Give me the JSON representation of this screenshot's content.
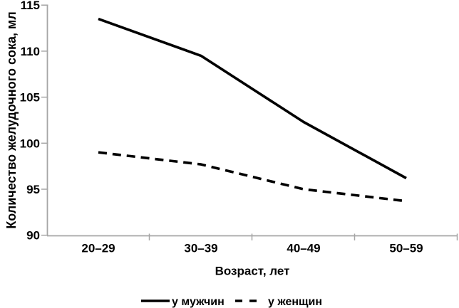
{
  "chart_data": {
    "type": "line",
    "xlabel": "Возраст, лет",
    "ylabel": "Количество желудочного сока, мл",
    "categories": [
      "20–29",
      "30–39",
      "40–49",
      "50–59"
    ],
    "series": [
      {
        "name": "у мужчин",
        "line_style": "solid",
        "color": "#000000",
        "values": [
          113.5,
          109.5,
          102.3,
          96.2
        ]
      },
      {
        "name": "у женщин",
        "line_style": "dashed",
        "color": "#000000",
        "values": [
          99,
          97.7,
          95,
          93.7
        ]
      }
    ],
    "ylim": [
      90,
      115
    ],
    "yticks": [
      90,
      95,
      100,
      105,
      110,
      115
    ],
    "grid": false,
    "legend_position": "bottom",
    "axis_color": "#a6a6a6",
    "text_color": "#000000",
    "background_color": "#ffffff"
  }
}
